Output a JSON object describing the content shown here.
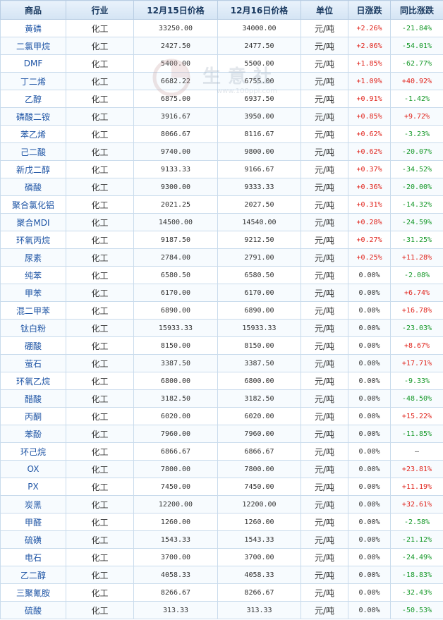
{
  "headers": [
    "商品",
    "行业",
    "12月15日价格",
    "12月16日价格",
    "单位",
    "日涨跌",
    "同比涨跌"
  ],
  "watermark": {
    "text": "生意社",
    "url": "www.100ppi.com"
  },
  "rows": [
    {
      "name": "黄磷",
      "industry": "化工",
      "p1": "33250.00",
      "p2": "34000.00",
      "unit": "元/吨",
      "day": "+2.26%",
      "yoy": "-21.84%"
    },
    {
      "name": "二氯甲烷",
      "industry": "化工",
      "p1": "2427.50",
      "p2": "2477.50",
      "unit": "元/吨",
      "day": "+2.06%",
      "yoy": "-54.01%"
    },
    {
      "name": "DMF",
      "industry": "化工",
      "p1": "5400.00",
      "p2": "5500.00",
      "unit": "元/吨",
      "day": "+1.85%",
      "yoy": "-62.77%"
    },
    {
      "name": "丁二烯",
      "industry": "化工",
      "p1": "6682.22",
      "p2": "6755.00",
      "unit": "元/吨",
      "day": "+1.09%",
      "yoy": "+40.92%"
    },
    {
      "name": "乙醇",
      "industry": "化工",
      "p1": "6875.00",
      "p2": "6937.50",
      "unit": "元/吨",
      "day": "+0.91%",
      "yoy": "-1.42%"
    },
    {
      "name": "磷酸二铵",
      "industry": "化工",
      "p1": "3916.67",
      "p2": "3950.00",
      "unit": "元/吨",
      "day": "+0.85%",
      "yoy": "+9.72%"
    },
    {
      "name": "苯乙烯",
      "industry": "化工",
      "p1": "8066.67",
      "p2": "8116.67",
      "unit": "元/吨",
      "day": "+0.62%",
      "yoy": "-3.23%"
    },
    {
      "name": "己二酸",
      "industry": "化工",
      "p1": "9740.00",
      "p2": "9800.00",
      "unit": "元/吨",
      "day": "+0.62%",
      "yoy": "-20.07%"
    },
    {
      "name": "新戊二醇",
      "industry": "化工",
      "p1": "9133.33",
      "p2": "9166.67",
      "unit": "元/吨",
      "day": "+0.37%",
      "yoy": "-34.52%"
    },
    {
      "name": "磷酸",
      "industry": "化工",
      "p1": "9300.00",
      "p2": "9333.33",
      "unit": "元/吨",
      "day": "+0.36%",
      "yoy": "-20.00%"
    },
    {
      "name": "聚合氯化铝",
      "industry": "化工",
      "p1": "2021.25",
      "p2": "2027.50",
      "unit": "元/吨",
      "day": "+0.31%",
      "yoy": "-14.32%"
    },
    {
      "name": "聚合MDI",
      "industry": "化工",
      "p1": "14500.00",
      "p2": "14540.00",
      "unit": "元/吨",
      "day": "+0.28%",
      "yoy": "-24.59%"
    },
    {
      "name": "环氧丙烷",
      "industry": "化工",
      "p1": "9187.50",
      "p2": "9212.50",
      "unit": "元/吨",
      "day": "+0.27%",
      "yoy": "-31.25%"
    },
    {
      "name": "尿素",
      "industry": "化工",
      "p1": "2784.00",
      "p2": "2791.00",
      "unit": "元/吨",
      "day": "+0.25%",
      "yoy": "+11.28%"
    },
    {
      "name": "纯苯",
      "industry": "化工",
      "p1": "6580.50",
      "p2": "6580.50",
      "unit": "元/吨",
      "day": "0.00%",
      "yoy": "-2.08%"
    },
    {
      "name": "甲苯",
      "industry": "化工",
      "p1": "6170.00",
      "p2": "6170.00",
      "unit": "元/吨",
      "day": "0.00%",
      "yoy": "+6.74%"
    },
    {
      "name": "混二甲苯",
      "industry": "化工",
      "p1": "6890.00",
      "p2": "6890.00",
      "unit": "元/吨",
      "day": "0.00%",
      "yoy": "+16.78%"
    },
    {
      "name": "钛白粉",
      "industry": "化工",
      "p1": "15933.33",
      "p2": "15933.33",
      "unit": "元/吨",
      "day": "0.00%",
      "yoy": "-23.03%"
    },
    {
      "name": "硼酸",
      "industry": "化工",
      "p1": "8150.00",
      "p2": "8150.00",
      "unit": "元/吨",
      "day": "0.00%",
      "yoy": "+8.67%"
    },
    {
      "name": "萤石",
      "industry": "化工",
      "p1": "3387.50",
      "p2": "3387.50",
      "unit": "元/吨",
      "day": "0.00%",
      "yoy": "+17.71%"
    },
    {
      "name": "环氧乙烷",
      "industry": "化工",
      "p1": "6800.00",
      "p2": "6800.00",
      "unit": "元/吨",
      "day": "0.00%",
      "yoy": "-9.33%"
    },
    {
      "name": "醋酸",
      "industry": "化工",
      "p1": "3182.50",
      "p2": "3182.50",
      "unit": "元/吨",
      "day": "0.00%",
      "yoy": "-48.50%"
    },
    {
      "name": "丙酮",
      "industry": "化工",
      "p1": "6020.00",
      "p2": "6020.00",
      "unit": "元/吨",
      "day": "0.00%",
      "yoy": "+15.22%"
    },
    {
      "name": "苯酚",
      "industry": "化工",
      "p1": "7960.00",
      "p2": "7960.00",
      "unit": "元/吨",
      "day": "0.00%",
      "yoy": "-11.85%"
    },
    {
      "name": "环己烷",
      "industry": "化工",
      "p1": "6866.67",
      "p2": "6866.67",
      "unit": "元/吨",
      "day": "0.00%",
      "yoy": "—"
    },
    {
      "name": "OX",
      "industry": "化工",
      "p1": "7800.00",
      "p2": "7800.00",
      "unit": "元/吨",
      "day": "0.00%",
      "yoy": "+23.81%"
    },
    {
      "name": "PX",
      "industry": "化工",
      "p1": "7450.00",
      "p2": "7450.00",
      "unit": "元/吨",
      "day": "0.00%",
      "yoy": "+11.19%"
    },
    {
      "name": "炭黑",
      "industry": "化工",
      "p1": "12200.00",
      "p2": "12200.00",
      "unit": "元/吨",
      "day": "0.00%",
      "yoy": "+32.61%"
    },
    {
      "name": "甲醛",
      "industry": "化工",
      "p1": "1260.00",
      "p2": "1260.00",
      "unit": "元/吨",
      "day": "0.00%",
      "yoy": "-2.58%"
    },
    {
      "name": "硫磺",
      "industry": "化工",
      "p1": "1543.33",
      "p2": "1543.33",
      "unit": "元/吨",
      "day": "0.00%",
      "yoy": "-21.12%"
    },
    {
      "name": "电石",
      "industry": "化工",
      "p1": "3700.00",
      "p2": "3700.00",
      "unit": "元/吨",
      "day": "0.00%",
      "yoy": "-24.49%"
    },
    {
      "name": "乙二醇",
      "industry": "化工",
      "p1": "4058.33",
      "p2": "4058.33",
      "unit": "元/吨",
      "day": "0.00%",
      "yoy": "-18.83%"
    },
    {
      "name": "三聚氰胺",
      "industry": "化工",
      "p1": "8266.67",
      "p2": "8266.67",
      "unit": "元/吨",
      "day": "0.00%",
      "yoy": "-32.43%"
    },
    {
      "name": "硫酸",
      "industry": "化工",
      "p1": "313.33",
      "p2": "313.33",
      "unit": "元/吨",
      "day": "0.00%",
      "yoy": "-50.53%"
    }
  ],
  "colors": {
    "up": "#e0241c",
    "down": "#159828",
    "name_link": "#1f55a5",
    "header_text": "#17375e"
  }
}
